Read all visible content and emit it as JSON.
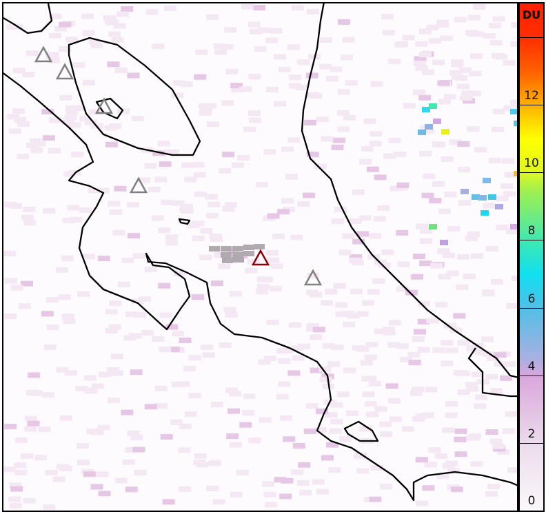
{
  "colorbar": {
    "unit_label": "DU",
    "ticks": [
      "0",
      "2",
      "4",
      "6",
      "8",
      "10",
      "12"
    ],
    "range": [
      0,
      15
    ],
    "colors": {
      "low": "#fbf8fb",
      "mid": "#10e0f0",
      "high": "#ff2000"
    }
  },
  "volcanoes": [
    {
      "status": "inactive",
      "color": "#808080"
    },
    {
      "status": "inactive",
      "color": "#808080"
    },
    {
      "status": "inactive",
      "color": "#808080"
    },
    {
      "status": "inactive",
      "color": "#808080"
    },
    {
      "status": "inactive",
      "color": "#808080"
    },
    {
      "status": "active",
      "color": "#8b0000"
    }
  ]
}
